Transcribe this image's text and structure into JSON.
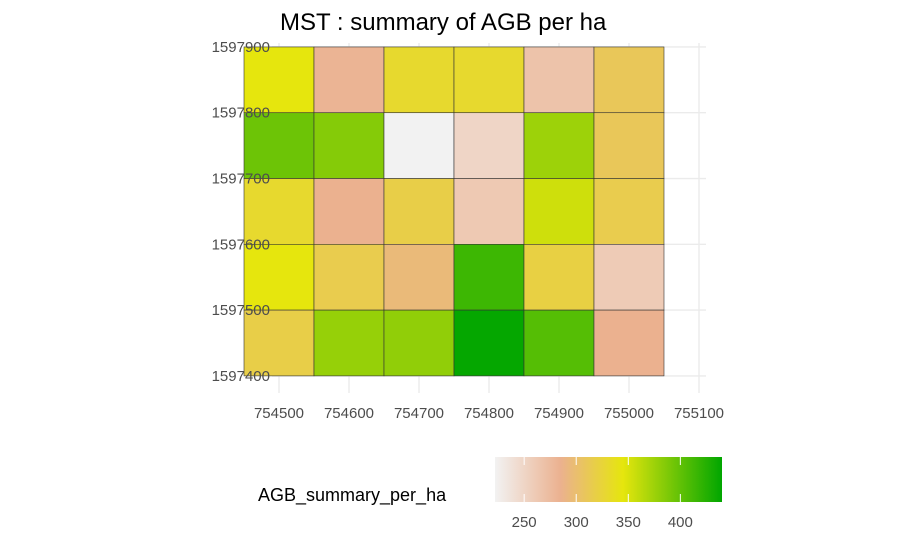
{
  "chart_data": {
    "type": "heatmap",
    "title": "MST : summary of AGB per ha",
    "xlabel": "",
    "ylabel": "",
    "x_ticks": [
      754500,
      754600,
      754700,
      754800,
      754900,
      755000,
      755100
    ],
    "y_ticks": [
      1597400,
      1597500,
      1597600,
      1597700,
      1597800,
      1597900
    ],
    "x_centers": [
      754500,
      754600,
      754700,
      754800,
      754900,
      755000
    ],
    "y_centers": [
      1597850,
      1597750,
      1597650,
      1597550,
      1597450
    ],
    "xlim": [
      754490,
      755110
    ],
    "ylim": [
      1597374,
      1597906
    ],
    "cell_width": 100,
    "cell_height": 100,
    "values": [
      [
        345,
        282,
        330,
        330,
        268,
        310
      ],
      [
        395,
        385,
        222,
        250,
        375,
        310
      ],
      [
        330,
        285,
        318,
        262,
        355,
        315
      ],
      [
        345,
        315,
        295,
        415,
        320,
        260
      ],
      [
        318,
        378,
        380,
        438,
        405,
        285
      ]
    ],
    "colorbar": {
      "title": "AGB_summary_per_ha",
      "min": 222,
      "max": 440,
      "ticks": [
        250,
        300,
        350,
        400
      ],
      "stops": [
        {
          "value": 222,
          "color": "#f2f2f2"
        },
        {
          "value": 285,
          "color": "#ebb18f"
        },
        {
          "value": 345,
          "color": "#e6e60d"
        },
        {
          "value": 440,
          "color": "#00a600"
        }
      ]
    },
    "legend_position": "bottom",
    "grid": true
  }
}
